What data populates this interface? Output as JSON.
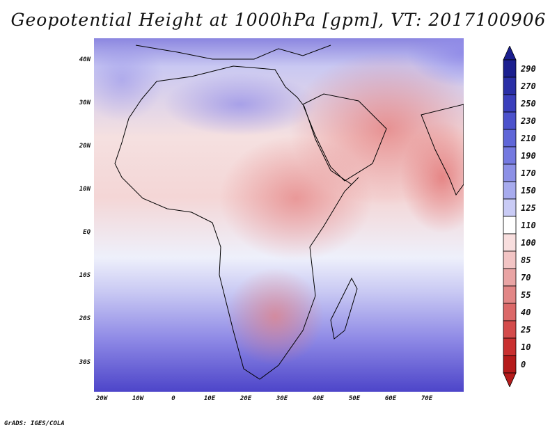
{
  "title": "Geopotential Height at 1000hPa [gpm], VT: 2017100906",
  "credit": "GrADS: IGES/COLA",
  "map": {
    "lat_labels": [
      "40N",
      "30N",
      "20N",
      "10N",
      "EQ",
      "10S",
      "20S",
      "30S"
    ],
    "lon_labels": [
      "20W",
      "10W",
      "0",
      "10E",
      "20E",
      "30E",
      "40E",
      "50E",
      "60E",
      "70E"
    ]
  },
  "colorbar": {
    "levels": [
      "290",
      "270",
      "250",
      "230",
      "210",
      "190",
      "170",
      "150",
      "125",
      "110",
      "100",
      "85",
      "70",
      "55",
      "40",
      "25",
      "10",
      "0"
    ],
    "colors": [
      "#1b1f8f",
      "#2a2fa6",
      "#3a3fbc",
      "#4c52cc",
      "#5f66d8",
      "#7479e0",
      "#8c90e6",
      "#a7abee",
      "#c9cbf5",
      "#ffffff",
      "#f8dede",
      "#f2c4c4",
      "#e9a4a4",
      "#e28686",
      "#db6868",
      "#d44b4b",
      "#c93030",
      "#b51b1b"
    ]
  },
  "colors": {
    "land_outline": "#000000",
    "ocean_south": "#5a55d0",
    "land_warm": "#ec9898"
  }
}
